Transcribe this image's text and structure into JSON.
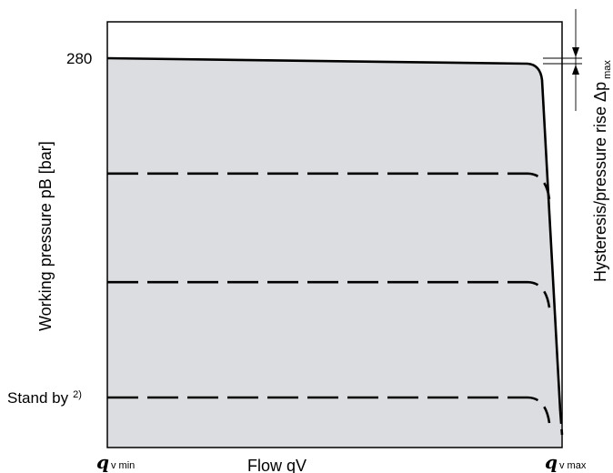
{
  "chart_data": {
    "type": "line",
    "xlabel": "Flow qV",
    "ylabel": "Working pressure pB [bar]",
    "x_ticks": {
      "left": {
        "symbol": "q",
        "subscript": "v min"
      },
      "right": {
        "symbol": "q",
        "subscript": "v max"
      }
    },
    "y_ticks": [
      {
        "label": "280"
      },
      {
        "label": "Stand by",
        "superscript": "2)"
      }
    ],
    "annotation": {
      "text": "Hysteresis/pressure rise Δp",
      "subscript": "max"
    },
    "series": [
      {
        "style": "solid",
        "level_fraction": 1.0,
        "note": ""
      },
      {
        "style": "dashed",
        "level_fraction": 0.66
      },
      {
        "style": "dashed",
        "level_fraction": 0.34
      },
      {
        "style": "dashed",
        "level_fraction": 0.0
      }
    ],
    "shaded_region": true,
    "grid": false
  }
}
